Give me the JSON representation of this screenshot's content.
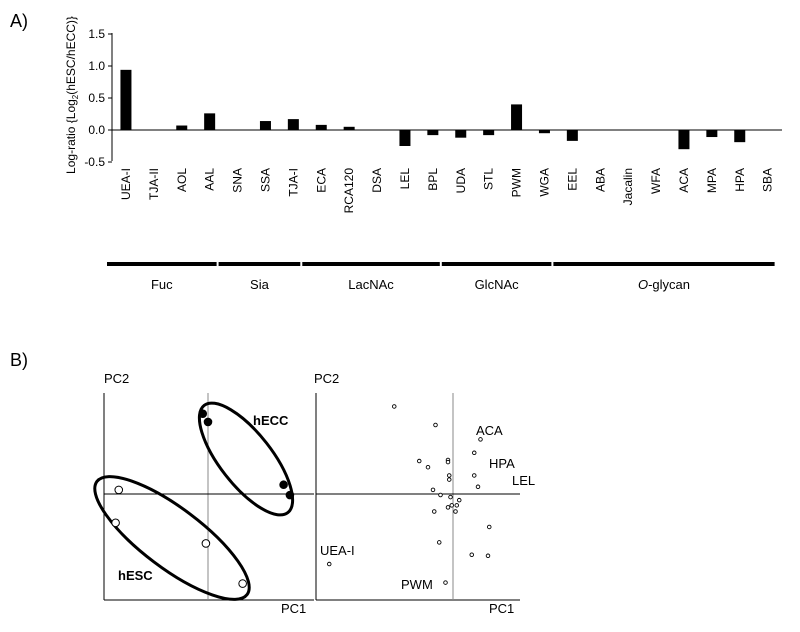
{
  "panel_a_label": "A)",
  "panel_b_label": "B)",
  "chart_data": [
    {
      "type": "bar",
      "ylabel": "Log-ratio {Log2(hESC/hECC)}",
      "ylabel_parts": {
        "pre": "Log-ratio {Log",
        "sub": "2",
        "post": "(hESC/hECC)}"
      },
      "ylim": [
        -0.5,
        1.5
      ],
      "yticks": [
        "1.5",
        "1.0",
        "0.5",
        "0.0",
        "-0.5"
      ],
      "ytick_values": [
        1.5,
        1.0,
        0.5,
        0.0,
        -0.5
      ],
      "categories": [
        "UEA-I",
        "TJA-II",
        "AOL",
        "AAL",
        "SNA",
        "SSA",
        "TJA-I",
        "ECA",
        "RCA120",
        "DSA",
        "LEL",
        "BPL",
        "UDA",
        "STL",
        "PWM",
        "WGA",
        "EEL",
        "ABA",
        "Jacalin",
        "WFA",
        "ACA",
        "MPA",
        "HPA",
        "SBA"
      ],
      "values": [
        0.94,
        0.0,
        0.07,
        0.26,
        0.0,
        0.14,
        0.17,
        0.08,
        0.05,
        0.0,
        -0.25,
        -0.08,
        -0.12,
        -0.08,
        0.4,
        -0.05,
        -0.17,
        0.0,
        0.0,
        0.0,
        -0.3,
        -0.11,
        -0.19,
        0.0
      ],
      "groups": [
        {
          "label": "Fuc",
          "range": [
            0,
            3
          ]
        },
        {
          "label": "Sia",
          "range": [
            4,
            6
          ]
        },
        {
          "label": "LacNAc",
          "range": [
            7,
            11
          ]
        },
        {
          "label": "GlcNAc",
          "range": [
            12,
            15
          ]
        },
        {
          "label_italic": "O",
          "label": "-glycan",
          "range": [
            16,
            23
          ]
        }
      ],
      "bar_color": "#000000"
    },
    {
      "type": "scatter",
      "title": "",
      "xlabel": "PC1",
      "ylabel": "PC2",
      "xlim": [
        -1,
        1
      ],
      "ylim": [
        -1,
        1
      ],
      "series": [
        {
          "name": "hECC",
          "filled": true,
          "points": [
            [
              -0.05,
              0.78
            ],
            [
              0.0,
              0.7
            ],
            [
              0.72,
              0.09
            ],
            [
              0.78,
              -0.01
            ]
          ]
        },
        {
          "name": "hESC",
          "filled": false,
          "points": [
            [
              -0.85,
              0.04
            ],
            [
              -0.88,
              -0.28
            ],
            [
              -0.02,
              -0.48
            ],
            [
              0.33,
              -0.87
            ]
          ]
        }
      ]
    },
    {
      "type": "scatter",
      "title": "",
      "xlabel": "PC1",
      "ylabel": "PC2",
      "xlim": [
        -1,
        0.5
      ],
      "ylim": [
        -1,
        1
      ],
      "points": [
        [
          -0.47,
          0.85
        ],
        [
          -0.14,
          0.67
        ],
        [
          -0.27,
          0.32
        ],
        [
          -0.04,
          0.33
        ],
        [
          -0.04,
          0.31
        ],
        [
          -0.2,
          0.26
        ],
        [
          -0.03,
          0.18
        ],
        [
          -0.03,
          0.14
        ],
        [
          0.17,
          0.18
        ],
        [
          0.17,
          0.4
        ],
        [
          0.22,
          0.53
        ],
        [
          -0.02,
          -0.03
        ],
        [
          0.05,
          -0.06
        ],
        [
          -0.1,
          -0.01
        ],
        [
          -0.04,
          -0.13
        ],
        [
          -0.01,
          -0.11
        ],
        [
          0.03,
          -0.11
        ],
        [
          0.02,
          -0.17
        ],
        [
          -0.15,
          -0.17
        ],
        [
          -0.16,
          0.04
        ],
        [
          0.29,
          -0.32
        ],
        [
          -0.11,
          -0.47
        ],
        [
          0.15,
          -0.59
        ],
        [
          0.28,
          -0.6
        ],
        [
          0.2,
          0.07
        ],
        [
          -0.99,
          -0.68
        ],
        [
          -0.06,
          -0.86
        ]
      ],
      "annotations": [
        {
          "text": "ACA",
          "x": 0.2,
          "y": 0.53
        },
        {
          "text": "HPA",
          "x": 0.22,
          "y": 0.3
        },
        {
          "text": "LEL",
          "x": 0.35,
          "y": 0.07
        },
        {
          "text": "UEA-I",
          "x": -0.99,
          "y": -0.68
        },
        {
          "text": "PWM",
          "x": -0.06,
          "y": -0.86
        }
      ],
      "annotation_text": {
        "ACA": "ACA",
        "HPA": "HPA",
        "LEL": "LEL",
        "UEA": "UEA-I",
        "PWM": "PWM"
      }
    }
  ]
}
